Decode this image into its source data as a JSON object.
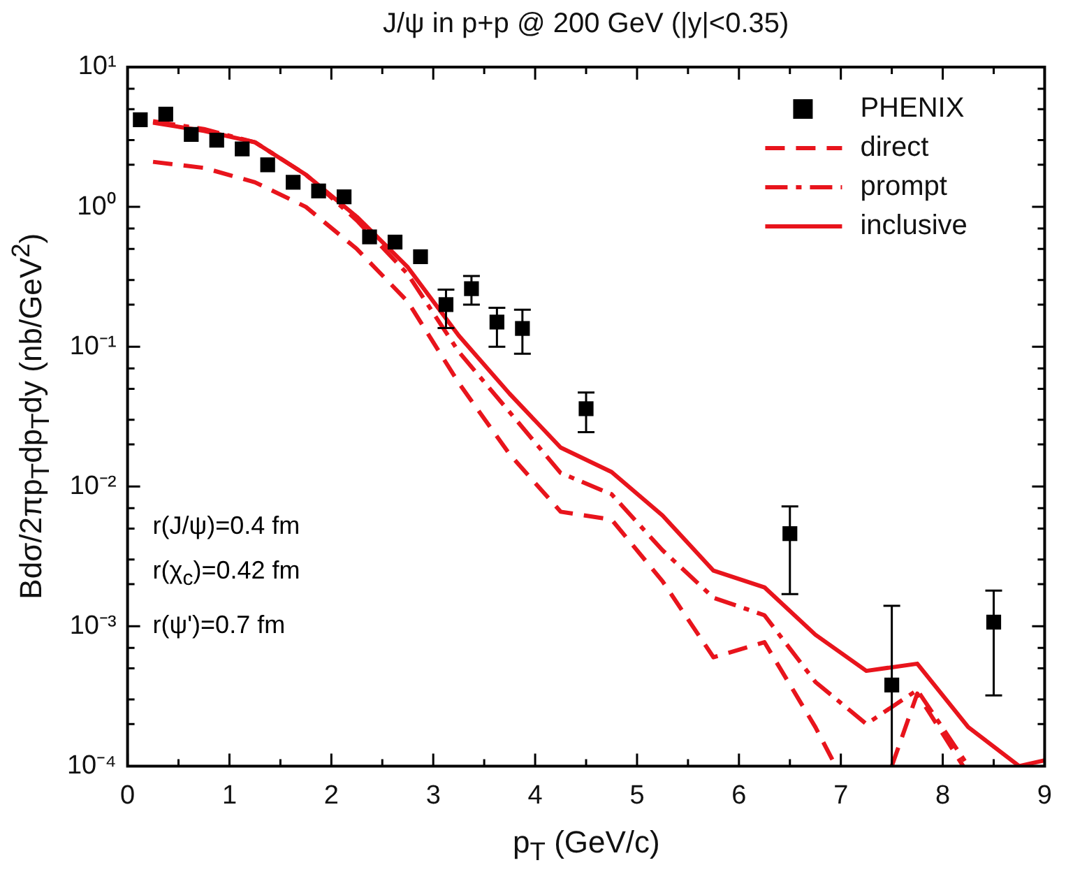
{
  "chart_data": {
    "type": "line",
    "title": "J/ψ in p+p @ 200 GeV (|y|<0.35)",
    "xlabel": "p$_{T}$ (GeV/c)",
    "ylabel": "Bdσ/2πp$_{T}$dp$_{T}$dy (nb/GeV$^{2}$)",
    "log": "y",
    "xlim": [
      0,
      9
    ],
    "ylim": [
      0.0001,
      10
    ],
    "xticks": [
      0,
      {
        "value": 0.5,
        "label": null
      },
      1,
      {
        "value": 1.5,
        "label": null
      },
      2,
      {
        "value": 2.5,
        "label": null
      },
      3,
      {
        "value": 3.5,
        "label": null
      },
      4,
      {
        "value": 4.5,
        "label": null
      },
      5,
      {
        "value": 5.5,
        "label": null
      },
      6,
      {
        "value": 6.5,
        "label": null
      },
      7,
      {
        "value": 7.5,
        "label": null
      },
      8,
      {
        "value": 8.5,
        "label": null
      },
      9
    ],
    "yticks": [
      {
        "value": 0.0001,
        "label": "10⁻⁴"
      },
      {
        "value": 0.001,
        "label": "10⁻³"
      },
      {
        "value": 0.01,
        "label": "10⁻²"
      },
      {
        "value": 0.1,
        "label": "10⁻¹"
      },
      {
        "value": 1,
        "label": "10⁰"
      },
      {
        "value": 10,
        "label": "10¹"
      },
      {
        "value": 0.0002,
        "label": null
      },
      {
        "value": 0.0003,
        "label": null
      },
      {
        "value": 0.0005,
        "label": null
      },
      {
        "value": 0.0007,
        "label": null
      },
      {
        "value": 0.002,
        "label": null
      },
      {
        "value": 0.003,
        "label": null
      },
      {
        "value": 0.005,
        "label": null
      },
      {
        "value": 0.007,
        "label": null
      },
      {
        "value": 0.02,
        "label": null
      },
      {
        "value": 0.03,
        "label": null
      },
      {
        "value": 0.05,
        "label": null
      },
      {
        "value": 0.07,
        "label": null
      },
      {
        "value": 0.2,
        "label": null
      },
      {
        "value": 0.3,
        "label": null
      },
      {
        "value": 0.5,
        "label": null
      },
      {
        "value": 0.7,
        "label": null
      },
      {
        "value": 2,
        "label": null
      },
      {
        "value": 3,
        "label": null
      },
      {
        "value": 5,
        "label": null
      },
      {
        "value": 7,
        "label": null
      }
    ],
    "grid": false,
    "legend": "top right",
    "series": [
      {
        "name": "PHENIX",
        "type": "scatter",
        "marker": "square",
        "color": "#000000",
        "x": [
          0.125,
          0.375,
          0.625,
          0.875,
          1.125,
          1.375,
          1.625,
          1.875,
          2.125,
          2.375,
          2.625,
          2.875,
          3.125,
          3.375,
          3.625,
          3.875,
          4.5,
          6.5,
          7.5,
          8.5
        ],
        "values": [
          4.2,
          4.6,
          3.3,
          3.0,
          2.6,
          2.0,
          1.5,
          1.3,
          1.18,
          0.61,
          0.56,
          0.44,
          0.2,
          0.26,
          0.15,
          0.135,
          0.036,
          0.0046,
          0.00038,
          0.00107
        ],
        "errors": [
          null,
          null,
          null,
          null,
          null,
          null,
          null,
          null,
          null,
          null,
          null,
          null,
          [
            0.136,
            0.256
          ],
          [
            0.2,
            0.32
          ],
          [
            0.1,
            0.19
          ],
          [
            0.089,
            0.184
          ],
          [
            0.0245,
            0.047
          ],
          [
            0.0017,
            0.0072
          ],
          [
            0.0001,
            0.0014
          ],
          [
            0.00032,
            0.0018
          ]
        ]
      },
      {
        "name": "direct",
        "type": "line",
        "line_style": "dashed",
        "marker": "none",
        "color": "#e8141c",
        "x": [
          0.25,
          0.75,
          1.25,
          1.75,
          2.25,
          2.75,
          3.25,
          3.75,
          4.25,
          4.75,
          5.25,
          5.75,
          6.25,
          6.75,
          6.95,
          7.2,
          7.5,
          7.75,
          8.2
        ],
        "values": [
          2.1,
          1.9,
          1.5,
          1.0,
          0.5,
          0.21,
          0.055,
          0.017,
          0.0066,
          0.0058,
          0.0021,
          0.0006,
          0.00077,
          0.00019,
          0.0001,
          null,
          0.0001,
          0.00033,
          0.0001
        ]
      },
      {
        "name": "prompt",
        "type": "line",
        "line_style": "dashdot",
        "marker": "none",
        "color": "#e8141c",
        "x": [
          0.25,
          0.75,
          1.25,
          1.75,
          2.25,
          2.75,
          3.25,
          3.75,
          4.25,
          4.75,
          5.25,
          5.75,
          6.25,
          6.75,
          7.25,
          7.75,
          8.25
        ],
        "values": [
          4.1,
          3.6,
          2.9,
          1.7,
          0.8,
          0.33,
          0.092,
          0.034,
          0.0125,
          0.0088,
          0.0035,
          0.0016,
          0.0012,
          0.0004,
          0.0002,
          0.00035,
          0.0001
        ]
      },
      {
        "name": "inclusive",
        "type": "line",
        "line_style": "solid",
        "marker": "none",
        "color": "#e8141c",
        "x": [
          0.25,
          0.75,
          1.25,
          1.75,
          2.25,
          2.75,
          3.25,
          3.75,
          4.25,
          4.75,
          5.25,
          5.75,
          6.25,
          6.75,
          7.25,
          7.75,
          8.25,
          8.75,
          9
        ],
        "values": [
          4.0,
          3.5,
          2.9,
          1.7,
          0.85,
          0.37,
          0.12,
          0.046,
          0.019,
          0.0127,
          0.0062,
          0.0025,
          0.0019,
          0.00087,
          0.00048,
          0.00054,
          0.00019,
          0.0001,
          0.00011
        ]
      }
    ],
    "annotations": [
      "r(J/ψ)=0.4 fm",
      "r(χ$_{c}$)=0.42 fm",
      "r(ψ')=0.7 fm"
    ]
  }
}
